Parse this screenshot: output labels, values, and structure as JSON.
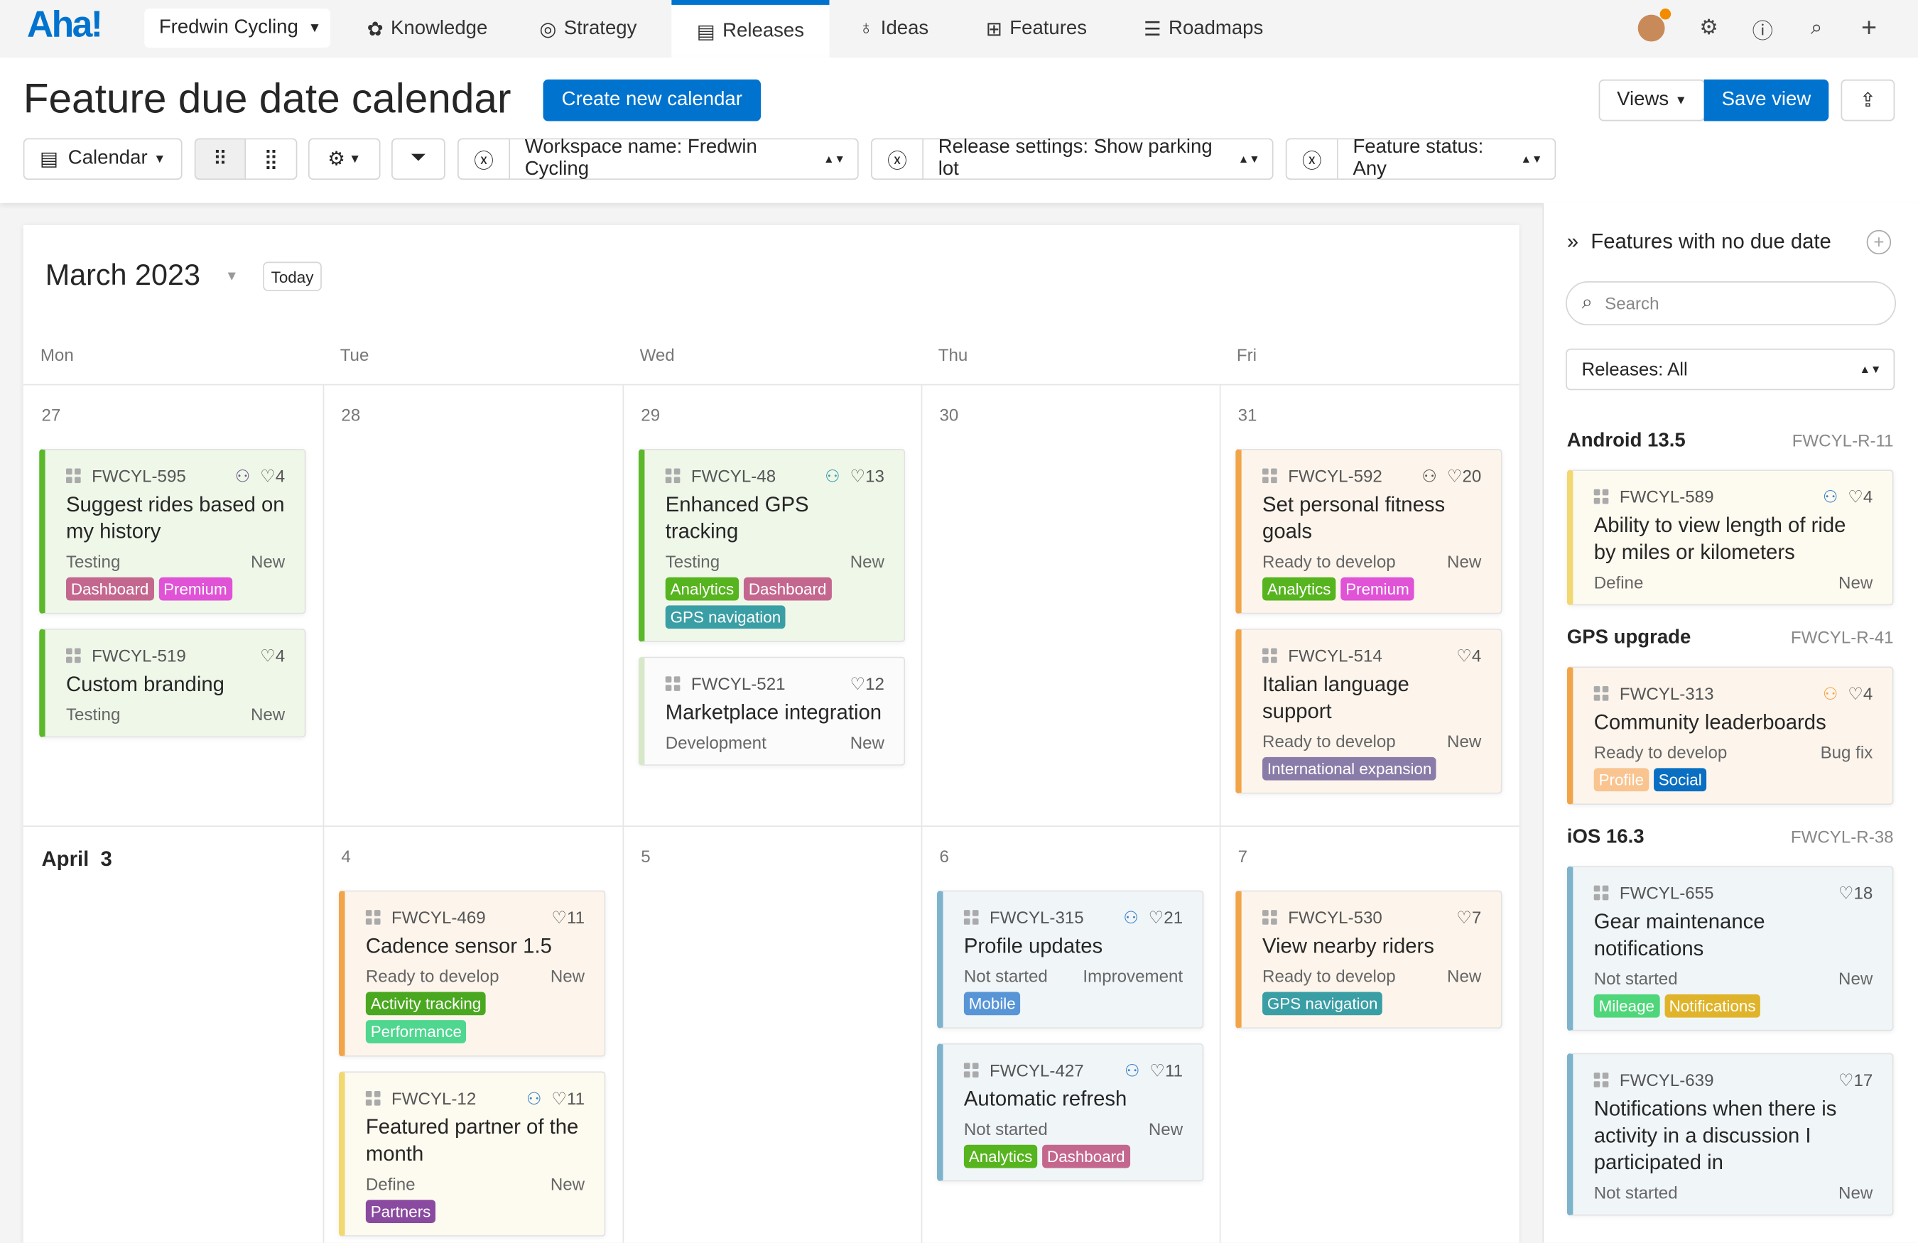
{
  "nav": {
    "logo": "Aha!",
    "workspace": "Fredwin Cycling",
    "items": [
      {
        "label": "Knowledge",
        "icon": "knowledge-icon"
      },
      {
        "label": "Strategy",
        "icon": "target-icon"
      },
      {
        "label": "Releases",
        "icon": "calendar-icon"
      },
      {
        "label": "Ideas",
        "icon": "lightbulb-icon"
      },
      {
        "label": "Features",
        "icon": "grid-icon"
      },
      {
        "label": "Roadmaps",
        "icon": "roadmap-icon"
      }
    ],
    "active": "Releases",
    "accent": "#0073cf"
  },
  "header": {
    "title": "Feature due date calendar",
    "create_button": "Create new calendar",
    "views": "Views",
    "save_view": "Save view"
  },
  "toolbar": {
    "calendar": "Calendar",
    "filters": [
      "Workspace name: Fredwin Cycling",
      "Release settings: Show parking lot",
      "Feature status: Any"
    ]
  },
  "calendar": {
    "month": "March 2023",
    "today": "Today",
    "days_of_week": [
      "Mon",
      "Tue",
      "Wed",
      "Thu",
      "Fri"
    ],
    "weeks": [
      {
        "days": [
          {
            "num": "27",
            "cards": [
              {
                "id": "FWCYL-595",
                "hier": true,
                "hier_color": "#6b5a8a",
                "score": "4",
                "title": "Suggest rides based on my history",
                "status": "Testing",
                "type": "New",
                "color": "#5cb82a",
                "bg": "#eff7e9",
                "tags": [
                  {
                    "label": "Dashboard",
                    "color": "#c4678f"
                  },
                  {
                    "label": "Premium",
                    "color": "#e052d6"
                  }
                ]
              },
              {
                "id": "FWCYL-519",
                "hier": false,
                "score": "4",
                "title": "Custom branding",
                "status": "Testing",
                "type": "New",
                "color": "#5cb82a",
                "bg": "#eff7e9",
                "tags": []
              }
            ]
          },
          {
            "num": "28",
            "cards": []
          },
          {
            "num": "29",
            "cards": [
              {
                "id": "FWCYL-48",
                "hier": true,
                "hier_color": "#3a9ea5",
                "score": "13",
                "title": "Enhanced GPS tracking",
                "status": "Testing",
                "type": "New",
                "color": "#5cb82a",
                "bg": "#eff7e9",
                "tags": [
                  {
                    "label": "Analytics",
                    "color": "#56b41e"
                  },
                  {
                    "label": "Dashboard",
                    "color": "#c4678f"
                  },
                  {
                    "label": "GPS navigation",
                    "color": "#3a9ea5"
                  }
                ]
              },
              {
                "id": "FWCYL-521",
                "hier": false,
                "score": "12",
                "title": "Marketplace integration",
                "status": "Development",
                "type": "New",
                "color": "#d7e8c8",
                "bg": "#fbfbfb",
                "tags": []
              }
            ]
          },
          {
            "num": "30",
            "cards": []
          },
          {
            "num": "31",
            "cards": [
              {
                "id": "FWCYL-592",
                "hier": true,
                "hier_color": "#555555",
                "score": "20",
                "title": "Set personal fitness goals",
                "status": "Ready to develop",
                "type": "New",
                "color": "#f2a448",
                "bg": "#fdf5ec",
                "tags": [
                  {
                    "label": "Analytics",
                    "color": "#56b41e"
                  },
                  {
                    "label": "Premium",
                    "color": "#e052d6"
                  }
                ]
              },
              {
                "id": "FWCYL-514",
                "hier": false,
                "score": "4",
                "title": "Italian language support",
                "status": "Ready to develop",
                "type": "New",
                "color": "#f2a448",
                "bg": "#fdf5ec",
                "tags": [
                  {
                    "label": "International expansion",
                    "color": "#8a7ca8"
                  }
                ]
              }
            ]
          }
        ]
      },
      {
        "days": [
          {
            "month": "April",
            "num": "3",
            "cards": []
          },
          {
            "num": "4",
            "cards": [
              {
                "id": "FWCYL-469",
                "hier": false,
                "score": "11",
                "title": "Cadence sensor 1.5",
                "status": "Ready to develop",
                "type": "New",
                "color": "#f2a448",
                "bg": "#fdf5ec",
                "tags": [
                  {
                    "label": "Activity tracking",
                    "color": "#4aa820"
                  },
                  {
                    "label": "Performance",
                    "color": "#4fd68f"
                  }
                ]
              },
              {
                "id": "FWCYL-12",
                "hier": true,
                "hier_color": "#3a7fc8",
                "score": "11",
                "title": "Featured partner of the month",
                "status": "Define",
                "type": "New",
                "color": "#f1d870",
                "bg": "#fdfaef",
                "tags": [
                  {
                    "label": "Partners",
                    "color": "#8a4aa0"
                  }
                ]
              }
            ]
          },
          {
            "num": "5",
            "cards": []
          },
          {
            "num": "6",
            "cards": [
              {
                "id": "FWCYL-315",
                "hier": true,
                "hier_color": "#3a7fc8",
                "score": "21",
                "title": "Profile updates",
                "status": "Not started",
                "type": "Improvement",
                "color": "#7eb3cc",
                "bg": "#f0f5f8",
                "tags": [
                  {
                    "label": "Mobile",
                    "color": "#5795d6"
                  }
                ]
              },
              {
                "id": "FWCYL-427",
                "hier": true,
                "hier_color": "#3a7fc8",
                "score": "11",
                "title": "Automatic refresh",
                "status": "Not started",
                "type": "New",
                "color": "#7eb3cc",
                "bg": "#f0f5f8",
                "tags": [
                  {
                    "label": "Analytics",
                    "color": "#56b41e"
                  },
                  {
                    "label": "Dashboard",
                    "color": "#c4678f"
                  }
                ]
              }
            ]
          },
          {
            "num": "7",
            "cards": [
              {
                "id": "FWCYL-530",
                "hier": false,
                "score": "7",
                "title": "View nearby riders",
                "status": "Ready to develop",
                "type": "New",
                "color": "#f2a448",
                "bg": "#fdf5ec",
                "tags": [
                  {
                    "label": "GPS navigation",
                    "color": "#3a9ea5"
                  }
                ]
              }
            ]
          }
        ]
      }
    ]
  },
  "sidebar": {
    "title": "Features with no due date",
    "search_placeholder": "Search",
    "releases_select": "Releases: All",
    "groups": [
      {
        "name": "Android 13.5",
        "ref": "FWCYL-R-11",
        "cards": [
          {
            "id": "FWCYL-589",
            "hier": true,
            "hier_color": "#3a7fc8",
            "score": "4",
            "title": "Ability to view length of ride by miles or kilometers",
            "status": "Define",
            "type": "New",
            "color": "#f1d870",
            "bg": "#fdfaef",
            "tags": []
          }
        ]
      },
      {
        "name": "GPS upgrade",
        "ref": "FWCYL-R-41",
        "cards": [
          {
            "id": "FWCYL-313",
            "hier": true,
            "hier_color": "#f2a448",
            "score": "4",
            "title": "Community leaderboards",
            "status": "Ready to develop",
            "type": "Bug fix",
            "color": "#f2a448",
            "bg": "#fdf5ec",
            "tags": [
              {
                "label": "Profile",
                "color": "#f9c48f"
              },
              {
                "label": "Social",
                "color": "#0a6fc2"
              }
            ]
          }
        ]
      },
      {
        "name": "iOS 16.3",
        "ref": "FWCYL-R-38",
        "cards": [
          {
            "id": "FWCYL-655",
            "hier": false,
            "score": "18",
            "title": "Gear maintenance notifications",
            "status": "Not started",
            "type": "New",
            "color": "#7eb3cc",
            "bg": "#f0f5f8",
            "tags": [
              {
                "label": "Mileage",
                "color": "#4fd67a"
              },
              {
                "label": "Notifications",
                "color": "#e0b42a"
              }
            ]
          },
          {
            "id": "FWCYL-639",
            "hier": false,
            "score": "17",
            "title": "Notifications when there is activity in a discussion I participated in",
            "status": "Not started",
            "type": "New",
            "color": "#7eb3cc",
            "bg": "#f0f5f8",
            "tags": []
          }
        ]
      }
    ]
  }
}
